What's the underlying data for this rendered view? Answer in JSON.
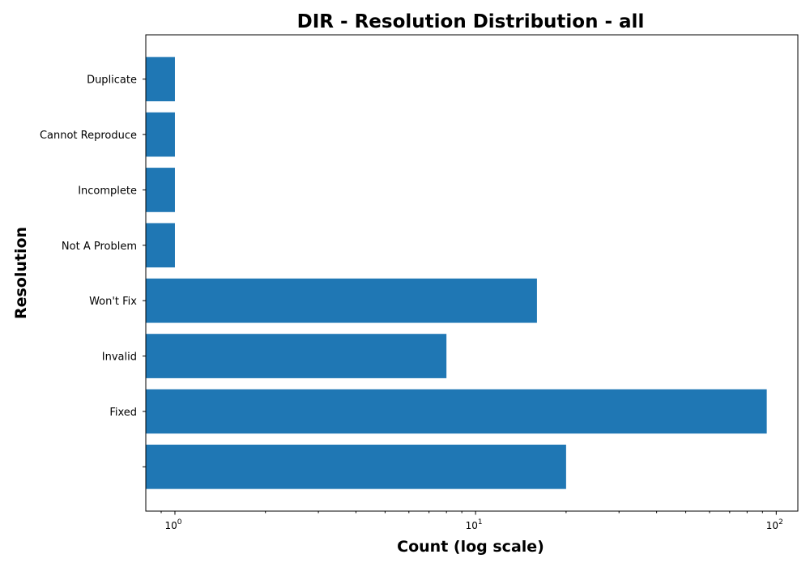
{
  "chart_data": {
    "type": "bar",
    "orientation": "horizontal",
    "title": "DIR - Resolution Distribution - all",
    "xlabel": "Count (log scale)",
    "ylabel": "Resolution",
    "x_scale": "log",
    "xlim": [
      0.8,
      118
    ],
    "categories": [
      "",
      "Fixed",
      "Invalid",
      "Won't Fix",
      "Not A Problem",
      "Incomplete",
      "Cannot Reproduce",
      "Duplicate"
    ],
    "values": [
      20,
      93,
      8,
      16,
      1,
      1,
      1,
      1
    ],
    "x_ticks": [
      {
        "base": "10",
        "exp": "0",
        "value": 1
      },
      {
        "base": "10",
        "exp": "1",
        "value": 10
      },
      {
        "base": "10",
        "exp": "2",
        "value": 100
      }
    ],
    "bar_color": "#1f77b4",
    "grid": false
  }
}
